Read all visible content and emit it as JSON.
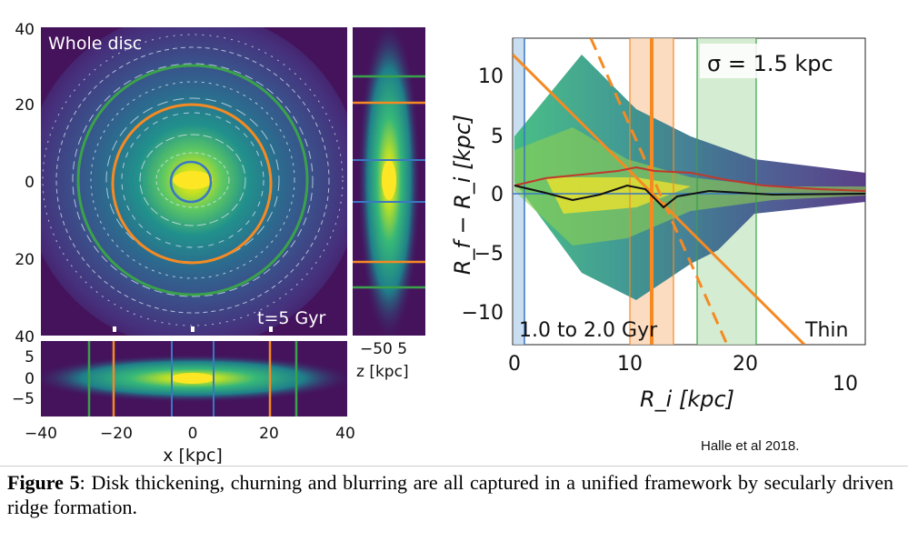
{
  "figure": {
    "left_panel": {
      "face_on_label": "Whole disc",
      "time_label": "t=5 Gyr",
      "y_ticks": [
        "40",
        "20",
        "0",
        "20",
        "40"
      ],
      "bottom_y_ticks": [
        "5",
        "0",
        "−5"
      ],
      "x_ticks": [
        "−40",
        "−20",
        "0",
        "20",
        "40"
      ],
      "x_label": "x [kpc]",
      "side_x_ticks": "−50 5",
      "side_x_label": "z [kpc]"
    },
    "right_panel": {
      "sigma_label": "σ =  1.5 kpc",
      "time_range_label": "1.0 to 2.0 Gyr",
      "population_label": "Thin",
      "y_label": "R_f − R_i [kpc]",
      "y_ticks": [
        "10",
        "5",
        "0",
        "−5",
        "−10"
      ],
      "x_ticks": [
        "0",
        "10",
        "20",
        "10"
      ],
      "x_label": "R_i [kpc]"
    },
    "credit": "Halle et al 2018."
  },
  "caption": {
    "label": "Figure 5",
    "text": ":  Disk thickening, churning and blurring are all captured in a unified framework  by secularly driven  ridge formation."
  },
  "colors": {
    "background_dark": "#3b1e6b",
    "ring_green": "#3aa24a",
    "ring_orange": "#f58a23",
    "ring_blue": "#3a78c2",
    "median_red": "#c0392b"
  }
}
